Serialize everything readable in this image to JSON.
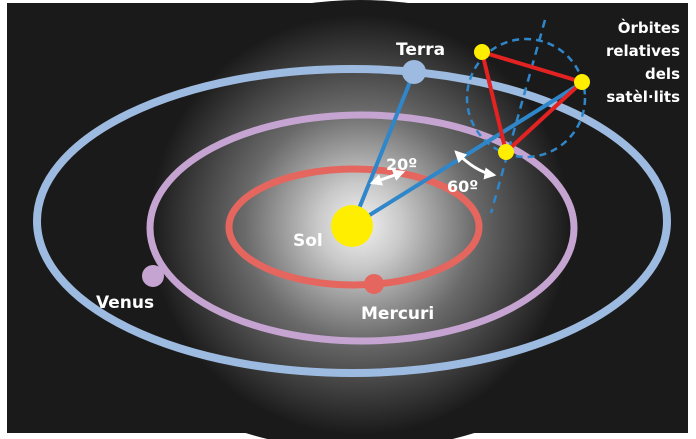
{
  "labels": {
    "earth": "Terra",
    "venus": "Venus",
    "mercury": "Mercuri",
    "sun": "Sol"
  },
  "angles": {
    "small": "20º",
    "large": "60º"
  },
  "relative_orbits_title": [
    "Òrbites",
    "relatives",
    "dels",
    "satèl·lits"
  ],
  "colors": {
    "background": "#1b1a1a",
    "earth_orbit": "#9dbbe0",
    "venus_orbit": "#c5a4d1",
    "mercury_orbit": "#e4665f",
    "sun": "#ffee00",
    "radius_line": "#2f86c9",
    "satellite": "#ffee00",
    "triangle": "#e32222",
    "arrow": "#ffffff"
  }
}
